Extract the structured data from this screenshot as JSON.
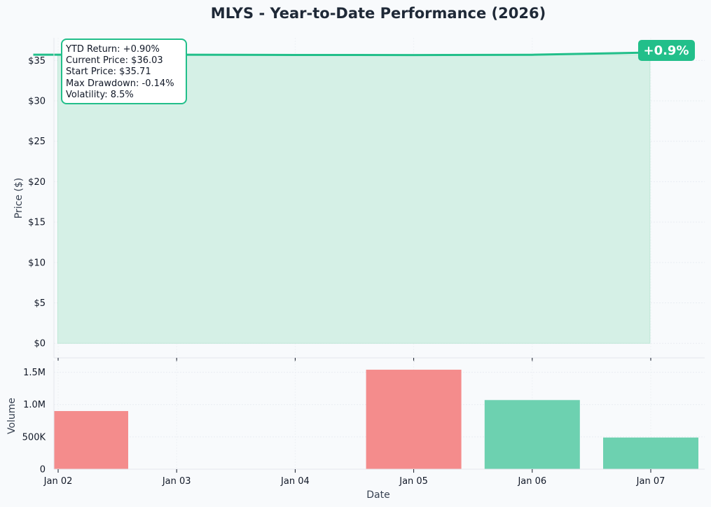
{
  "chart_data": {
    "type": "line",
    "title": "MLYS - Year-to-Date Performance (2026)",
    "xlabel": "Date",
    "ylabel": "Price ($)",
    "categories": [
      "Jan 02",
      "Jan 03",
      "Jan 04",
      "Jan 05",
      "Jan 06",
      "Jan 07"
    ],
    "price": {
      "x": [
        -0.21,
        1,
        2,
        3,
        4,
        5.2
      ],
      "values": [
        35.71,
        35.71,
        35.68,
        35.67,
        35.7,
        36.03
      ],
      "ylim": [
        -1.8,
        37.8
      ],
      "yticks": [
        0,
        5,
        10,
        15,
        20,
        25,
        30,
        35
      ],
      "ytick_labels": [
        "$0",
        "$5",
        "$10",
        "$15",
        "$20",
        "$25",
        "$30",
        "$35"
      ],
      "line_color": "#22bf8a",
      "fill_color": "#d5f0e6"
    },
    "volume": {
      "ylabel": "Volume",
      "bars": [
        {
          "x": 0,
          "value": 900000,
          "direction": "down"
        },
        {
          "x": 3,
          "value": 1540000,
          "direction": "up_red"
        },
        {
          "x": 4,
          "value": 1070000,
          "direction": "up"
        },
        {
          "x": 5,
          "value": 490000,
          "direction": "up"
        }
      ],
      "ylim": [
        0,
        1680000
      ],
      "yticks": [
        0,
        500000,
        1000000,
        1500000
      ],
      "ytick_labels": [
        "0",
        "500K",
        "1.0M",
        "1.5M"
      ],
      "up_color": "#6dd1b0",
      "down_color": "#f48c8c"
    },
    "stats_box": [
      "YTD Return: +0.90%",
      "Current Price: $36.03",
      "Start Price: $35.71",
      "Max Drawdown: -0.14%",
      "Volatility: 8.5%"
    ],
    "badge": "+0.9%",
    "badge_color": "#22bf8a",
    "grid": true,
    "legend": "none"
  }
}
